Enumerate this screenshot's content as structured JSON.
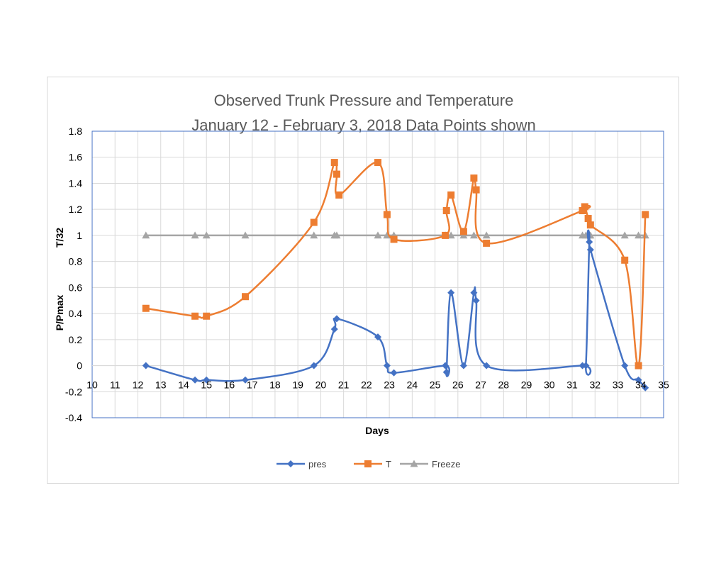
{
  "chart_data": {
    "type": "line",
    "title": "Observed Trunk Pressure and Temperature",
    "subtitle": "January 12 - February 3,  2018    Data Points shown",
    "xlabel": "Days",
    "ylabel_top": "T/32",
    "ylabel_bottom": "P/Pmax",
    "xlim": [
      10,
      35
    ],
    "ylim": [
      -0.4,
      1.8
    ],
    "x_ticks": [
      10,
      11,
      12,
      13,
      14,
      15,
      16,
      17,
      18,
      19,
      20,
      21,
      22,
      23,
      24,
      25,
      26,
      27,
      28,
      29,
      30,
      31,
      32,
      33,
      34,
      35
    ],
    "y_ticks": [
      -0.4,
      -0.2,
      0,
      0.2,
      0.4,
      0.6,
      0.8,
      1,
      1.2,
      1.4,
      1.6,
      1.8
    ],
    "grid": true,
    "legend_position": "bottom",
    "series": [
      {
        "name": "pres",
        "color": "#4472C4",
        "marker": "diamond",
        "points": [
          [
            12.35,
            0
          ],
          [
            14.5,
            -0.11
          ],
          [
            15.0,
            -0.11
          ],
          [
            16.7,
            -0.11
          ],
          [
            19.7,
            0
          ],
          [
            20.6,
            0.28
          ],
          [
            20.7,
            0.36
          ],
          [
            22.5,
            0.22
          ],
          [
            22.9,
            0
          ],
          [
            23.2,
            -0.055
          ],
          [
            25.45,
            0
          ],
          [
            25.5,
            -0.05
          ],
          [
            25.7,
            0.56
          ],
          [
            26.25,
            0
          ],
          [
            26.7,
            0.56
          ],
          [
            26.8,
            0.5
          ],
          [
            27.25,
            0
          ],
          [
            31.45,
            0
          ],
          [
            31.6,
            0
          ],
          [
            31.75,
            0.95
          ],
          [
            31.8,
            0.89
          ],
          [
            33.3,
            0
          ],
          [
            33.9,
            -0.11
          ],
          [
            34.2,
            -0.17
          ]
        ]
      },
      {
        "name": "T",
        "color": "#ED7D31",
        "marker": "square",
        "points": [
          [
            12.35,
            0.44
          ],
          [
            14.5,
            0.38
          ],
          [
            15.0,
            0.38
          ],
          [
            16.7,
            0.53
          ],
          [
            19.7,
            1.1
          ],
          [
            20.6,
            1.56
          ],
          [
            20.7,
            1.47
          ],
          [
            20.8,
            1.31
          ],
          [
            22.5,
            1.56
          ],
          [
            22.9,
            1.16
          ],
          [
            23.2,
            0.97
          ],
          [
            25.45,
            1.0
          ],
          [
            25.5,
            1.19
          ],
          [
            25.7,
            1.31
          ],
          [
            26.25,
            1.03
          ],
          [
            26.7,
            1.44
          ],
          [
            26.8,
            1.35
          ],
          [
            27.25,
            0.94
          ],
          [
            31.45,
            1.19
          ],
          [
            31.55,
            1.22
          ],
          [
            31.7,
            1.13
          ],
          [
            31.8,
            1.08
          ],
          [
            33.3,
            0.81
          ],
          [
            33.9,
            0.0
          ],
          [
            34.2,
            1.16
          ]
        ]
      },
      {
        "name": "Freeze",
        "color": "#A5A5A5",
        "marker": "triangle",
        "points": [
          [
            12.35,
            1
          ],
          [
            14.5,
            1
          ],
          [
            15.0,
            1
          ],
          [
            16.7,
            1
          ],
          [
            19.7,
            1
          ],
          [
            20.6,
            1
          ],
          [
            20.7,
            1
          ],
          [
            22.5,
            1
          ],
          [
            22.9,
            1
          ],
          [
            23.2,
            1
          ],
          [
            25.45,
            1
          ],
          [
            25.7,
            1
          ],
          [
            26.25,
            1
          ],
          [
            26.7,
            1
          ],
          [
            27.25,
            1
          ],
          [
            31.45,
            1
          ],
          [
            31.6,
            1
          ],
          [
            31.75,
            1
          ],
          [
            31.8,
            1
          ],
          [
            33.3,
            1
          ],
          [
            33.9,
            1
          ],
          [
            34.2,
            1
          ]
        ]
      }
    ]
  }
}
